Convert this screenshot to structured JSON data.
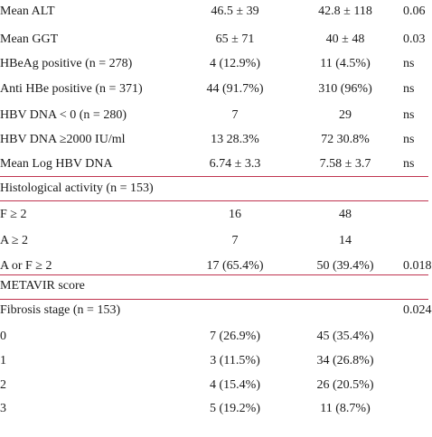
{
  "rows": [
    {
      "label": "Mean ALT",
      "g1": "46.5 ± 39",
      "g2": "42.8 ± 118",
      "p": "0.06"
    },
    {
      "label": "Mean GGT",
      "g1": "65 ± 71",
      "g2": "40 ± 48",
      "p": "0.03"
    },
    {
      "label": "HBeAg positive (n = 278)",
      "g1": "4 (12.9%)",
      "g2": "11 (4.5%)",
      "p": "ns"
    },
    {
      "label": "Anti HBe positive (n = 371)",
      "g1": "44 (91.7%)",
      "g2": "310 (96%)",
      "p": "ns"
    },
    {
      "label": "HBV DNA < 0 (n = 280)",
      "g1": "7",
      "g2": "29",
      "p": "ns"
    },
    {
      "label": "HBV DNA ≥2000 IU/ml",
      "g1": "13 28.3%",
      "g2": "72 30.8%",
      "p": "ns"
    },
    {
      "label": "Mean Log HBV DNA",
      "g1": "6.74 ± 3.3",
      "g2": "7.58 ± 3.7",
      "p": "ns"
    },
    {
      "label": "Histological activity (n = 153)",
      "g1": "",
      "g2": "",
      "p": ""
    },
    {
      "label": "F ≥ 2",
      "g1": "16",
      "g2": "48",
      "p": ""
    },
    {
      "label": "A ≥ 2",
      "g1": "7",
      "g2": "14",
      "p": ""
    },
    {
      "label": "A or F ≥ 2",
      "g1": "17 (65.4%)",
      "g2": "50 (39.4%)",
      "p": "0.018"
    },
    {
      "label": "METAVIR score",
      "g1": "",
      "g2": "",
      "p": ""
    },
    {
      "label": "Fibrosis stage (n = 153)",
      "g1": "",
      "g2": "",
      "p": "0.024"
    },
    {
      "label": "0",
      "g1": "7 (26.9%)",
      "g2": "45 (35.4%)",
      "p": ""
    },
    {
      "label": "1",
      "g1": "3 (11.5%)",
      "g2": "34 (26.8%)",
      "p": ""
    },
    {
      "label": "2",
      "g1": "4 (15.4%)",
      "g2": "26 (20.5%)",
      "p": ""
    },
    {
      "label": "3",
      "g1": "5 (19.2%)",
      "g2": "11 (8.7%)",
      "p": ""
    }
  ]
}
